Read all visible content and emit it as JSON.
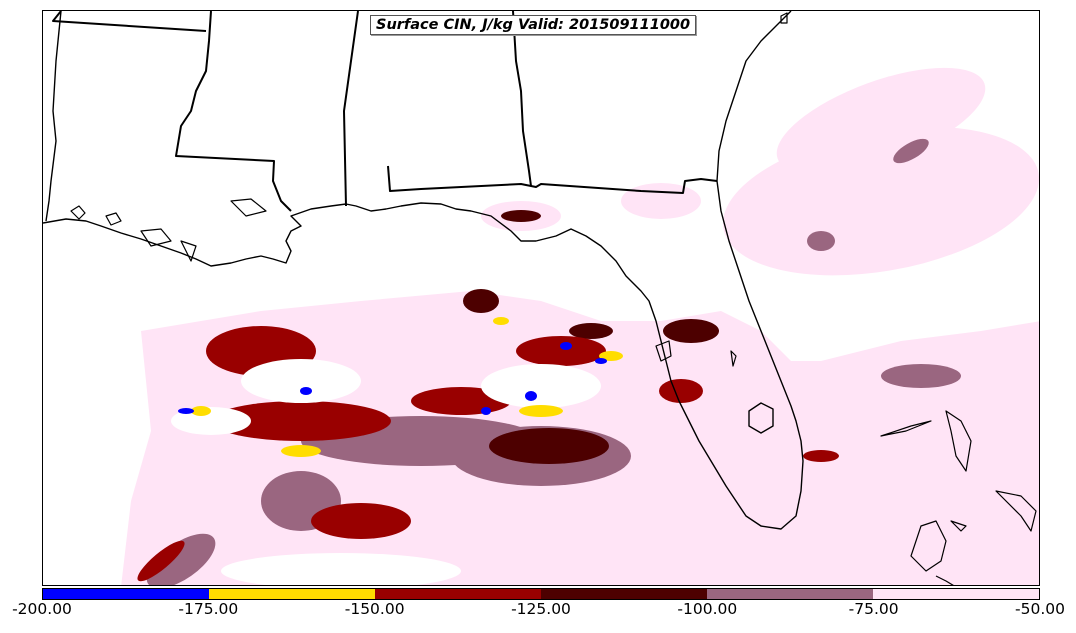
{
  "map": {
    "title": "Surface CIN, J/kg Valid: 201509111000",
    "colorbar": {
      "segments": [
        {
          "from": -200,
          "to": -175,
          "color": "#0000ff"
        },
        {
          "from": -175,
          "to": -150,
          "color": "#ffdd00"
        },
        {
          "from": -150,
          "to": -125,
          "color": "#990000"
        },
        {
          "from": -125,
          "to": -100,
          "color": "#4d0000"
        },
        {
          "from": -100,
          "to": -75,
          "color": "#9a6680"
        },
        {
          "from": -75,
          "to": -50,
          "color": "#ffe4f6"
        }
      ],
      "ticks": [
        "-200.00",
        "-175.00",
        "-150.00",
        "-125.00",
        "-100.00",
        "-75.00",
        "-50.00"
      ]
    },
    "fill_colors": {
      "light": "#ffe4f6",
      "mauve": "#9a6680",
      "dark_maroon": "#4d0000",
      "red": "#990000",
      "yellow": "#ffdd00",
      "blue": "#0000ff"
    }
  }
}
